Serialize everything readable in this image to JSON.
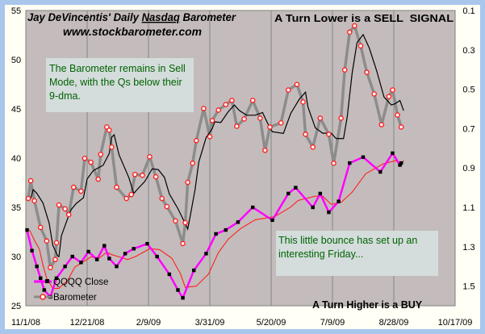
{
  "chart_data": {
    "type": "line",
    "title_part1": "Jay DeVincentis' Daily ",
    "title_part2": "Nasdaq",
    "title_part3": " Barometer",
    "subtitle": "www.stockbarometer.com",
    "x_unit": "days since 11/1/08",
    "xlim": [
      0,
      350
    ],
    "x_ticks": [
      {
        "day": 0,
        "label": "11/1/08"
      },
      {
        "day": 50,
        "label": "12/21/08"
      },
      {
        "day": 100,
        "label": "2/9/09"
      },
      {
        "day": 150,
        "label": "3/31/09"
      },
      {
        "day": 200,
        "label": "5/20/09"
      },
      {
        "day": 250,
        "label": "7/9/09"
      },
      {
        "day": 300,
        "label": "8/28/09"
      },
      {
        "day": 350,
        "label": "10/17/09"
      }
    ],
    "y_left": {
      "lim": [
        25,
        55
      ],
      "ticks": [
        "25",
        "30",
        "35",
        "40",
        "45",
        "50",
        "55"
      ]
    },
    "y_right": {
      "lim": [
        0.1,
        1.6
      ],
      "inverted": true,
      "ticks": [
        "0.1",
        "0.3",
        "0.5",
        "0.7",
        "0.9",
        "1.1",
        "1.3",
        "1.5"
      ]
    },
    "grid": "vertical",
    "legend": {
      "position": "bottom-left",
      "items": [
        "QQQQ Close",
        "Barometer"
      ]
    },
    "series": [
      {
        "name": "QQQQ Close",
        "axis": "left",
        "color": "#ff00ff",
        "marker_color": "#000000",
        "ma_color": "#ff2020",
        "x": [
          1,
          5,
          9,
          12,
          15,
          20,
          25,
          32,
          38,
          45,
          51,
          58,
          64,
          68,
          74,
          81,
          88,
          99,
          107,
          117,
          124,
          128,
          137,
          147,
          155,
          163,
          173,
          185,
          201,
          214,
          220,
          234,
          240,
          247,
          255,
          264,
          275,
          289,
          299,
          305,
          306
        ],
        "y": [
          32.7,
          30.6,
          29.0,
          27.8,
          26.6,
          25.9,
          27.8,
          29.0,
          30.0,
          29.4,
          30.5,
          29.7,
          31.1,
          29.8,
          29.0,
          30.3,
          30.8,
          31.3,
          30.0,
          28.2,
          26.6,
          25.8,
          28.6,
          30.3,
          32.3,
          32.7,
          33.5,
          35.0,
          33.7,
          36.4,
          37.0,
          35.0,
          36.4,
          34.5,
          35.6,
          39.5,
          40.1,
          38.6,
          40.5,
          39.3,
          39.5
        ]
      },
      {
        "name": "Barometer",
        "axis": "right",
        "color": "#8c8c8c",
        "marker_color": "#ff2020",
        "ma_color": "#000000",
        "x": [
          2,
          4,
          7,
          12,
          17,
          20,
          24,
          25,
          27,
          32,
          35,
          39,
          45,
          48,
          53,
          59,
          61,
          66,
          68,
          70,
          74,
          82,
          86,
          89,
          95,
          101,
          106,
          111,
          115,
          122,
          128,
          130,
          132,
          136,
          139,
          145,
          150,
          152,
          157,
          163,
          168,
          172,
          178,
          185,
          191,
          195,
          199,
          208,
          214,
          221,
          226,
          228,
          234,
          240,
          247,
          251,
          257,
          260,
          264,
          268,
          273,
          278,
          284,
          290,
          296,
          299,
          303,
          306
        ],
        "y": [
          1.055,
          0.965,
          1.067,
          1.202,
          1.271,
          1.406,
          1.365,
          1.28,
          1.088,
          1.108,
          1.137,
          0.998,
          1.018,
          0.851,
          0.871,
          0.957,
          0.831,
          0.692,
          0.708,
          0.794,
          0.998,
          1.055,
          1.035,
          0.933,
          0.937,
          0.843,
          0.945,
          1.055,
          1.096,
          1.169,
          1.284,
          1.178,
          0.973,
          0.876,
          0.761,
          0.598,
          0.741,
          0.659,
          0.606,
          0.578,
          0.557,
          0.688,
          0.651,
          0.557,
          0.647,
          0.81,
          0.692,
          0.671,
          0.504,
          0.476,
          0.565,
          0.729,
          0.794,
          0.647,
          0.729,
          0.876,
          0.647,
          0.402,
          0.21,
          0.178,
          0.28,
          0.414,
          0.524,
          0.68,
          0.537,
          0.504,
          0.631,
          0.692
        ]
      }
    ],
    "annotations": {
      "note_top": [
        "The Barometer remains in Sell",
        "Mode, with the Qs below their",
        "9-dma."
      ],
      "note_bottom": [
        "This little bounce has set up an",
        "interesting Friday..."
      ],
      "sell_signal": "A Turn Lower is a SELL  SIGNAL",
      "buy_signal": "A Turn Higher is a BUY"
    }
  }
}
